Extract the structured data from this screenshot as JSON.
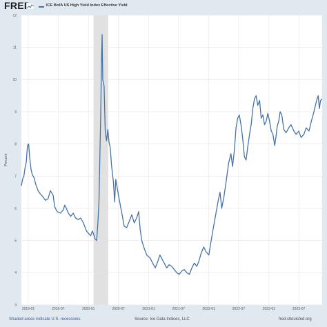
{
  "header": {
    "logo_text": "FRED",
    "legend_label": "ICE BofA US High Yield Index Effective Yield",
    "legend_color": "#4572a7"
  },
  "footer": {
    "recession_note": "Shaded areas indicate U.S. recessions.",
    "source": "Source: Ice Data Indices, LLC",
    "site": "fred.stlouisfed.org"
  },
  "chart_data": {
    "type": "line",
    "title": "",
    "xlabel": "",
    "ylabel": "Percent",
    "ylim": [
      3,
      12
    ],
    "xlim": [
      "2018-11-20",
      "2023-11-20"
    ],
    "grid": true,
    "y_ticks": [
      "3",
      "4",
      "5",
      "6",
      "7",
      "8",
      "9",
      "10",
      "11",
      "12"
    ],
    "x_ticks": [
      {
        "date": "2019-01-01",
        "label": "2019-01"
      },
      {
        "date": "2019-07-01",
        "label": "2019-07"
      },
      {
        "date": "2020-01-01",
        "label": "2020-01"
      },
      {
        "date": "2020-07-01",
        "label": "2020-07"
      },
      {
        "date": "2021-01-01",
        "label": "2021-01"
      },
      {
        "date": "2021-07-01",
        "label": "2021-07"
      },
      {
        "date": "2022-01-01",
        "label": "2022-01"
      },
      {
        "date": "2022-07-01",
        "label": "2022-07"
      },
      {
        "date": "2023-01-01",
        "label": "2023-01"
      },
      {
        "date": "2023-07-01",
        "label": "2023-07"
      }
    ],
    "recessions": [
      {
        "start": "2020-02-01",
        "end": "2020-04-30"
      }
    ],
    "colors": {
      "line": "#4572a7",
      "recession": "#e1e1e1",
      "grid": "#e6e6e6"
    },
    "series": [
      {
        "name": "ICE BofA US High Yield Index Effective Yield",
        "points": [
          [
            "2018-11-20",
            6.7
          ],
          [
            "2018-11-27",
            6.9
          ],
          [
            "2018-12-05",
            7.0
          ],
          [
            "2018-12-12",
            7.25
          ],
          [
            "2018-12-20",
            7.45
          ],
          [
            "2018-12-27",
            7.95
          ],
          [
            "2019-01-03",
            8.0
          ],
          [
            "2019-01-10",
            7.55
          ],
          [
            "2019-01-18",
            7.2
          ],
          [
            "2019-01-25",
            7.05
          ],
          [
            "2019-02-05",
            6.95
          ],
          [
            "2019-02-15",
            6.75
          ],
          [
            "2019-03-01",
            6.55
          ],
          [
            "2019-03-15",
            6.45
          ],
          [
            "2019-04-01",
            6.35
          ],
          [
            "2019-04-15",
            6.25
          ],
          [
            "2019-05-01",
            6.3
          ],
          [
            "2019-05-15",
            6.55
          ],
          [
            "2019-06-01",
            6.4
          ],
          [
            "2019-06-10",
            6.05
          ],
          [
            "2019-06-25",
            5.9
          ],
          [
            "2019-07-15",
            5.85
          ],
          [
            "2019-08-01",
            5.95
          ],
          [
            "2019-08-10",
            6.1
          ],
          [
            "2019-08-20",
            6.0
          ],
          [
            "2019-09-01",
            5.85
          ],
          [
            "2019-09-15",
            5.75
          ],
          [
            "2019-10-01",
            5.85
          ],
          [
            "2019-10-15",
            5.7
          ],
          [
            "2019-11-01",
            5.65
          ],
          [
            "2019-11-15",
            5.7
          ],
          [
            "2019-12-01",
            5.55
          ],
          [
            "2019-12-20",
            5.3
          ],
          [
            "2020-01-05",
            5.2
          ],
          [
            "2020-01-15",
            5.15
          ],
          [
            "2020-01-25",
            5.3
          ],
          [
            "2020-02-01",
            5.2
          ],
          [
            "2020-02-10",
            5.05
          ],
          [
            "2020-02-20",
            5.0
          ],
          [
            "2020-02-28",
            5.6
          ],
          [
            "2020-03-05",
            6.2
          ],
          [
            "2020-03-10",
            7.5
          ],
          [
            "2020-03-16",
            9.0
          ],
          [
            "2020-03-20",
            10.5
          ],
          [
            "2020-03-24",
            11.4
          ],
          [
            "2020-03-28",
            10.0
          ],
          [
            "2020-04-05",
            9.8
          ],
          [
            "2020-04-12",
            8.4
          ],
          [
            "2020-04-20",
            8.1
          ],
          [
            "2020-04-28",
            8.45
          ],
          [
            "2020-05-05",
            8.05
          ],
          [
            "2020-05-12",
            7.9
          ],
          [
            "2020-05-20",
            7.35
          ],
          [
            "2020-06-01",
            6.8
          ],
          [
            "2020-06-08",
            6.2
          ],
          [
            "2020-06-15",
            6.9
          ],
          [
            "2020-06-25",
            6.6
          ],
          [
            "2020-07-05",
            6.3
          ],
          [
            "2020-07-20",
            5.9
          ],
          [
            "2020-08-05",
            5.45
          ],
          [
            "2020-08-20",
            5.4
          ],
          [
            "2020-09-05",
            5.6
          ],
          [
            "2020-09-20",
            5.8
          ],
          [
            "2020-10-05",
            5.55
          ],
          [
            "2020-10-20",
            5.7
          ],
          [
            "2020-11-01",
            5.9
          ],
          [
            "2020-11-10",
            5.35
          ],
          [
            "2020-11-20",
            5.0
          ],
          [
            "2020-12-05",
            4.75
          ],
          [
            "2020-12-20",
            4.55
          ],
          [
            "2021-01-10",
            4.45
          ],
          [
            "2021-01-25",
            4.3
          ],
          [
            "2021-02-10",
            4.15
          ],
          [
            "2021-02-25",
            4.35
          ],
          [
            "2021-03-10",
            4.55
          ],
          [
            "2021-03-20",
            4.45
          ],
          [
            "2021-04-05",
            4.3
          ],
          [
            "2021-04-20",
            4.15
          ],
          [
            "2021-05-05",
            4.25
          ],
          [
            "2021-05-20",
            4.2
          ],
          [
            "2021-06-05",
            4.1
          ],
          [
            "2021-06-20",
            4.0
          ],
          [
            "2021-07-05",
            3.95
          ],
          [
            "2021-07-20",
            4.05
          ],
          [
            "2021-08-05",
            4.1
          ],
          [
            "2021-08-20",
            4.0
          ],
          [
            "2021-09-05",
            3.95
          ],
          [
            "2021-09-20",
            4.15
          ],
          [
            "2021-10-05",
            4.3
          ],
          [
            "2021-10-20",
            4.2
          ],
          [
            "2021-11-01",
            4.35
          ],
          [
            "2021-11-15",
            4.6
          ],
          [
            "2021-12-01",
            4.8
          ],
          [
            "2021-12-15",
            4.65
          ],
          [
            "2022-01-01",
            4.55
          ],
          [
            "2022-01-15",
            5.0
          ],
          [
            "2022-02-01",
            5.5
          ],
          [
            "2022-02-15",
            5.9
          ],
          [
            "2022-03-01",
            6.3
          ],
          [
            "2022-03-10",
            6.5
          ],
          [
            "2022-03-20",
            6.0
          ],
          [
            "2022-04-01",
            6.3
          ],
          [
            "2022-04-15",
            6.8
          ],
          [
            "2022-05-01",
            7.4
          ],
          [
            "2022-05-15",
            7.7
          ],
          [
            "2022-05-25",
            7.3
          ],
          [
            "2022-06-05",
            7.8
          ],
          [
            "2022-06-15",
            8.5
          ],
          [
            "2022-06-25",
            8.8
          ],
          [
            "2022-07-05",
            8.9
          ],
          [
            "2022-07-15",
            8.6
          ],
          [
            "2022-07-25",
            8.2
          ],
          [
            "2022-08-05",
            7.6
          ],
          [
            "2022-08-15",
            7.5
          ],
          [
            "2022-08-25",
            7.9
          ],
          [
            "2022-09-05",
            8.3
          ],
          [
            "2022-09-15",
            8.6
          ],
          [
            "2022-09-25",
            9.1
          ],
          [
            "2022-10-05",
            9.4
          ],
          [
            "2022-10-15",
            9.5
          ],
          [
            "2022-10-25",
            9.2
          ],
          [
            "2022-11-05",
            9.35
          ],
          [
            "2022-11-15",
            8.8
          ],
          [
            "2022-11-25",
            8.9
          ],
          [
            "2022-12-05",
            8.6
          ],
          [
            "2022-12-15",
            8.7
          ],
          [
            "2022-12-25",
            8.95
          ],
          [
            "2023-01-05",
            8.7
          ],
          [
            "2023-01-15",
            8.4
          ],
          [
            "2023-01-25",
            8.3
          ],
          [
            "2023-02-05",
            7.95
          ],
          [
            "2023-02-12",
            8.2
          ],
          [
            "2023-02-20",
            8.55
          ],
          [
            "2023-03-01",
            8.7
          ],
          [
            "2023-03-10",
            9.0
          ],
          [
            "2023-03-20",
            8.9
          ],
          [
            "2023-04-01",
            8.45
          ],
          [
            "2023-04-15",
            8.35
          ],
          [
            "2023-05-01",
            8.5
          ],
          [
            "2023-05-15",
            8.6
          ],
          [
            "2023-06-01",
            8.4
          ],
          [
            "2023-06-15",
            8.3
          ],
          [
            "2023-07-01",
            8.4
          ],
          [
            "2023-07-15",
            8.2
          ],
          [
            "2023-08-01",
            8.3
          ],
          [
            "2023-08-15",
            8.5
          ],
          [
            "2023-09-01",
            8.4
          ],
          [
            "2023-09-15",
            8.7
          ],
          [
            "2023-10-01",
            9.0
          ],
          [
            "2023-10-10",
            9.2
          ],
          [
            "2023-10-20",
            9.4
          ],
          [
            "2023-10-27",
            9.5
          ],
          [
            "2023-11-03",
            9.1
          ],
          [
            "2023-11-10",
            9.35
          ],
          [
            "2023-11-20",
            9.4
          ]
        ]
      }
    ]
  }
}
